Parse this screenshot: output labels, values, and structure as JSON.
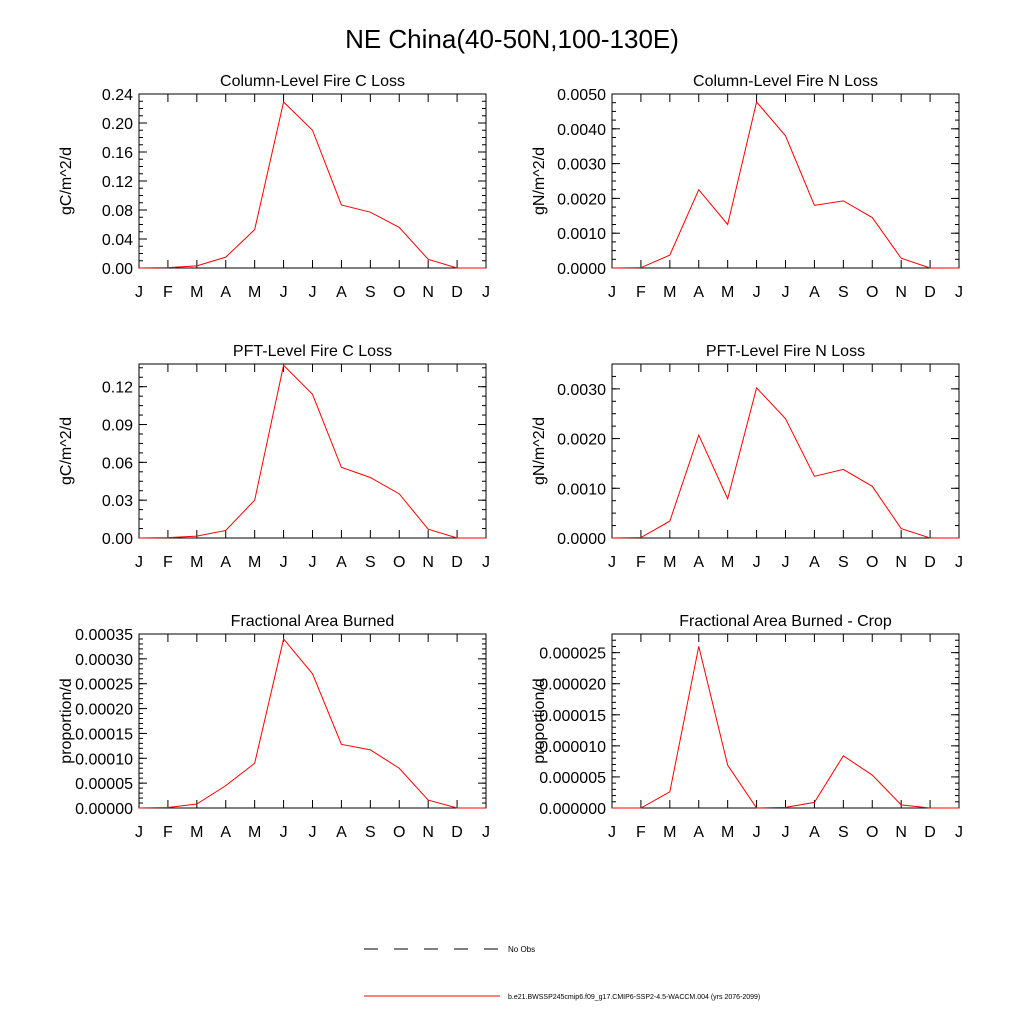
{
  "page": {
    "title": "NE China(40-50N,100-130E)"
  },
  "legend": {
    "obs_label": "No Obs",
    "model_label": "b.e21.BWSSP245cmip6.f09_g17.CMIP6-SSP2-4.5-WACCM.004 (yrs 2076-2099)",
    "model_color": "#ff0000",
    "obs_color": "#000000"
  },
  "chart_data": [
    {
      "type": "line",
      "title": "Column-Level Fire C Loss",
      "ylabel": "gC/m^2/d",
      "x": [
        "J",
        "F",
        "M",
        "A",
        "M",
        "J",
        "J",
        "A",
        "S",
        "O",
        "N",
        "D",
        "J"
      ],
      "ylim": [
        0,
        0.24
      ],
      "yticks": [
        "0.00",
        "0.04",
        "0.08",
        "0.12",
        "0.16",
        "0.20",
        "0.24"
      ],
      "yminor": 0.01,
      "series": [
        {
          "color": "#ff0000",
          "values": [
            0,
            0.0005,
            0.003,
            0.015,
            0.053,
            0.229,
            0.19,
            0.087,
            0.077,
            0.056,
            0.012,
            0,
            0
          ]
        }
      ]
    },
    {
      "type": "line",
      "title": "Column-Level Fire N Loss",
      "ylabel": "gN/m^2/d",
      "x": [
        "J",
        "F",
        "M",
        "A",
        "M",
        "J",
        "J",
        "A",
        "S",
        "O",
        "N",
        "D",
        "J"
      ],
      "ylim": [
        0,
        0.005
      ],
      "yticks": [
        "0.0000",
        "0.0010",
        "0.0020",
        "0.0030",
        "0.0040",
        "0.0050"
      ],
      "yminor": 0.00025,
      "series": [
        {
          "color": "#ff0000",
          "values": [
            0,
            1e-05,
            0.00037,
            0.00225,
            0.00125,
            0.00477,
            0.0038,
            0.0018,
            0.00193,
            0.00145,
            0.00028,
            0,
            0
          ]
        }
      ]
    },
    {
      "type": "line",
      "title": "PFT-Level Fire C Loss",
      "ylabel": "gC/m^2/d",
      "x": [
        "J",
        "F",
        "M",
        "A",
        "M",
        "J",
        "J",
        "A",
        "S",
        "O",
        "N",
        "D",
        "J"
      ],
      "ylim": [
        0,
        0.138
      ],
      "yticks": [
        "0.00",
        "0.03",
        "0.06",
        "0.09",
        "0.12"
      ],
      "yminor": 0.0075,
      "series": [
        {
          "color": "#ff0000",
          "values": [
            0,
            0.0003,
            0.0015,
            0.006,
            0.03,
            0.137,
            0.114,
            0.056,
            0.048,
            0.035,
            0.007,
            0,
            0
          ]
        }
      ]
    },
    {
      "type": "line",
      "title": "PFT-Level Fire N Loss",
      "ylabel": "gN/m^2/d",
      "x": [
        "J",
        "F",
        "M",
        "A",
        "M",
        "J",
        "J",
        "A",
        "S",
        "O",
        "N",
        "D",
        "J"
      ],
      "ylim": [
        0,
        0.0035
      ],
      "yticks": [
        "0.0000",
        "0.0010",
        "0.0020",
        "0.0030"
      ],
      "yminor": 0.00025,
      "series": [
        {
          "color": "#ff0000",
          "values": [
            0,
            1e-05,
            0.00034,
            0.00207,
            0.00079,
            0.00302,
            0.0024,
            0.00124,
            0.00138,
            0.00104,
            0.00019,
            0,
            0
          ]
        }
      ]
    },
    {
      "type": "line",
      "title": "Fractional Area Burned",
      "ylabel": "proportion/d",
      "x": [
        "J",
        "F",
        "M",
        "A",
        "M",
        "J",
        "J",
        "A",
        "S",
        "O",
        "N",
        "D",
        "J"
      ],
      "ylim": [
        0,
        0.00035
      ],
      "yticks": [
        "0.00000",
        "0.00005",
        "0.00010",
        "0.00015",
        "0.00020",
        "0.00025",
        "0.00030",
        "0.00035"
      ],
      "yminor": 1e-05,
      "series": [
        {
          "color": "#ff0000",
          "values": [
            0,
            1e-06,
            8e-06,
            4.5e-05,
            9e-05,
            0.00034,
            0.00027,
            0.000128,
            0.000117,
            8e-05,
            1.6e-05,
            0,
            0
          ]
        }
      ]
    },
    {
      "type": "line",
      "title": "Fractional Area Burned - Crop",
      "ylabel": "proportion/d",
      "x": [
        "J",
        "F",
        "M",
        "A",
        "M",
        "J",
        "J",
        "A",
        "S",
        "O",
        "N",
        "D",
        "J"
      ],
      "ylim": [
        0,
        2.8e-05
      ],
      "yticks": [
        "0.000000",
        "0.000005",
        "0.000010",
        "0.000015",
        "0.000020",
        "0.000025"
      ],
      "yminor": 1e-06,
      "series": [
        {
          "color": "#ff0000",
          "values": [
            0,
            0,
            2.6e-06,
            2.6e-05,
            6.9e-06,
            0,
            1e-07,
            9e-07,
            8.4e-06,
            5.3e-06,
            5e-07,
            0,
            0
          ]
        }
      ]
    }
  ]
}
